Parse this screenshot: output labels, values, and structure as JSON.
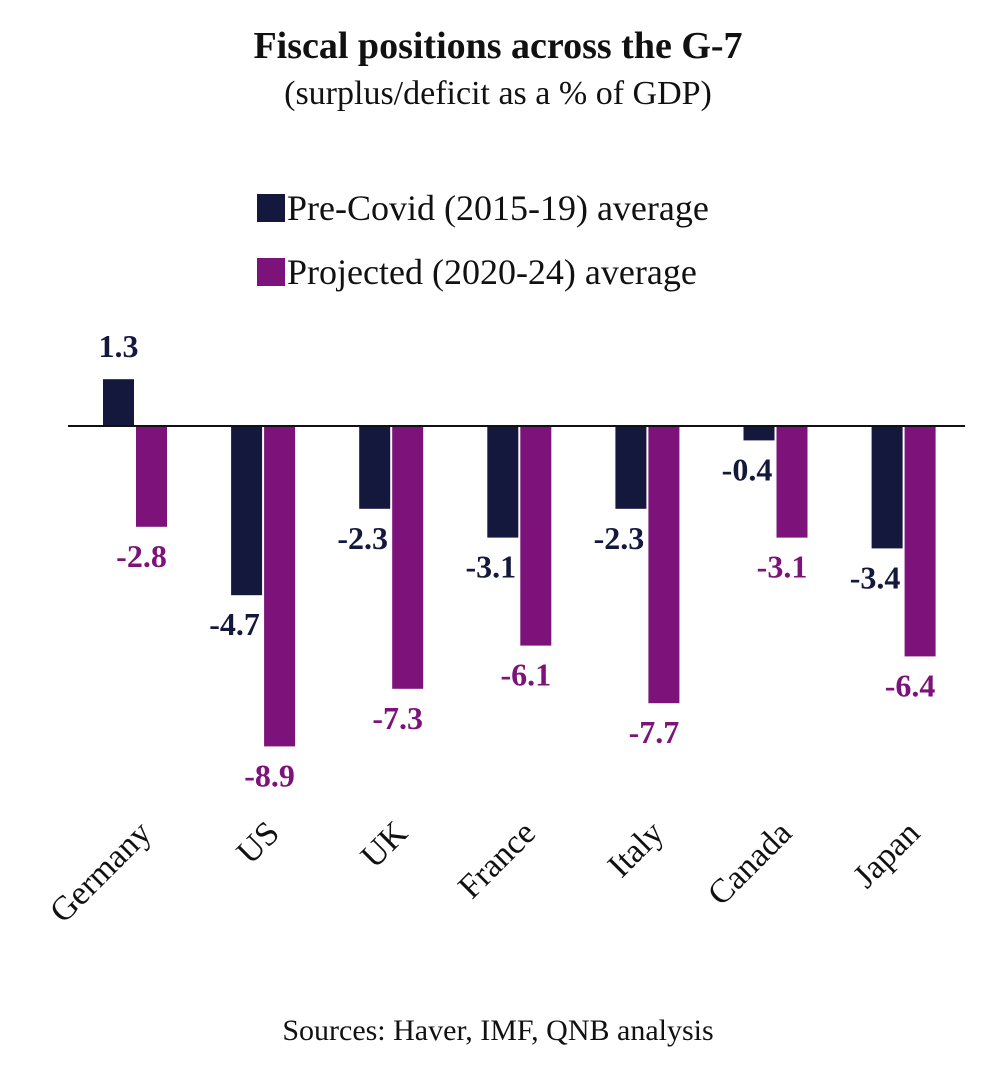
{
  "chart_data": {
    "type": "bar",
    "title": "Fiscal positions across the G-7",
    "subtitle": "(surplus/deficit as a % of GDP)",
    "categories": [
      "Germany",
      "US",
      "UK",
      "France",
      "Italy",
      "Canada",
      "Japan"
    ],
    "series": [
      {
        "name": "Pre-Covid (2015-19) average",
        "color": "#14183d",
        "values": [
          1.3,
          -4.7,
          -2.3,
          -3.1,
          -2.3,
          -0.4,
          -3.4
        ],
        "labels": [
          "1.3",
          "-4.7",
          "-2.3",
          "-3.1",
          "-2.3",
          "-0.4",
          "-3.4"
        ]
      },
      {
        "name": "Projected (2020-24) average",
        "color": "#7d137a",
        "values": [
          -2.8,
          -8.9,
          -7.3,
          -6.1,
          -7.7,
          -3.1,
          -6.4
        ],
        "labels": [
          "-2.8",
          "-8.9",
          "-7.3",
          "-6.1",
          "-7.7",
          "-3.1",
          "-6.4"
        ]
      }
    ],
    "xlabel": "",
    "ylabel": "",
    "ylim": [
      -9.5,
      1.8
    ],
    "grid": false,
    "legend_position": "top-center",
    "source": "Sources: Haver, IMF, QNB analysis"
  }
}
